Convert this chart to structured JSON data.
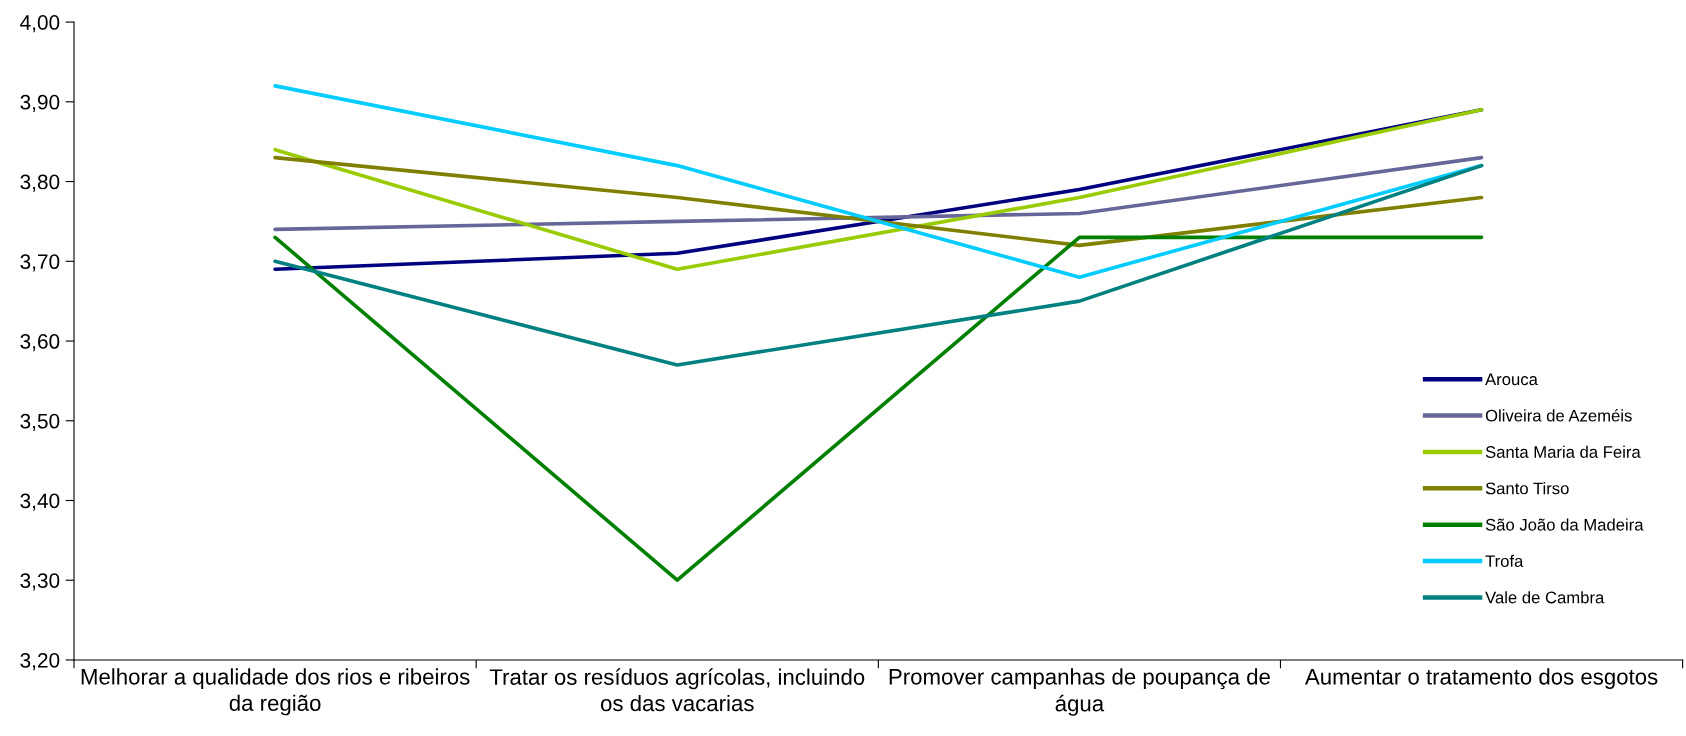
{
  "chart_data": {
    "type": "line",
    "categories": [
      "Melhorar a qualidade dos rios e ribeiros da região",
      "Tratar os resíduos agrícolas, incluindo os das vacarias",
      "Promover campanhas de poupança de água",
      "Aumentar o tratamento dos esgotos"
    ],
    "series": [
      {
        "name": "Arouca",
        "color": "#000080",
        "values": [
          3.69,
          3.71,
          3.79,
          3.89
        ]
      },
      {
        "name": "Oliveira de Azeméis",
        "color": "#666699",
        "values": [
          3.74,
          3.75,
          3.76,
          3.83
        ]
      },
      {
        "name": "Santa Maria da Feira",
        "color": "#99cc00",
        "values": [
          3.84,
          3.69,
          3.78,
          3.89
        ]
      },
      {
        "name": "Santo Tirso",
        "color": "#808000",
        "values": [
          3.83,
          3.78,
          3.72,
          3.78
        ]
      },
      {
        "name": "São João da Madeira",
        "color": "#008000",
        "values": [
          3.73,
          3.3,
          3.73,
          3.73
        ]
      },
      {
        "name": "Trofa",
        "color": "#00ccff",
        "values": [
          3.92,
          3.82,
          3.68,
          3.82
        ]
      },
      {
        "name": "Vale de Cambra",
        "color": "#008080",
        "values": [
          3.7,
          3.57,
          3.65,
          3.82
        ]
      }
    ],
    "ylim": [
      3.2,
      4.0
    ],
    "yticks": [
      {
        "value": 3.2,
        "label": "3,20"
      },
      {
        "value": 3.3,
        "label": "3,30"
      },
      {
        "value": 3.4,
        "label": "3,40"
      },
      {
        "value": 3.5,
        "label": "3,50"
      },
      {
        "value": 3.6,
        "label": "3,60"
      },
      {
        "value": 3.7,
        "label": "3,70"
      },
      {
        "value": 3.8,
        "label": "3,80"
      },
      {
        "value": 3.9,
        "label": "3,90"
      },
      {
        "value": 4.0,
        "label": "4,00"
      }
    ],
    "grid": false,
    "legend": "lower right",
    "marker": "none",
    "line_style": "solid"
  }
}
